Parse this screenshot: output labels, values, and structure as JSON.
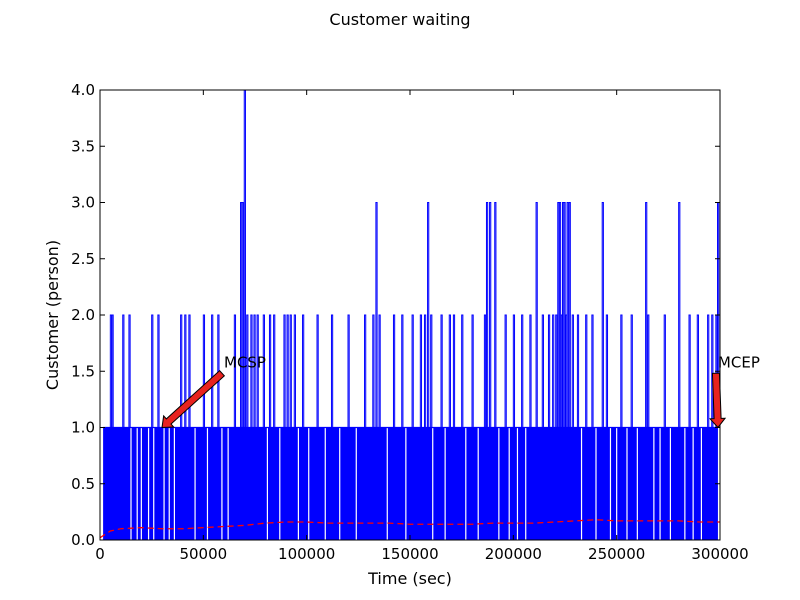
{
  "chart_data": {
    "type": "line",
    "title": "Customer waiting",
    "xlabel": "Time (sec)",
    "ylabel": "Customer (person)",
    "xlim": [
      0,
      300000
    ],
    "ylim": [
      0.0,
      4.0
    ],
    "grid": false,
    "x_ticks": [
      0,
      50000,
      100000,
      150000,
      200000,
      250000,
      300000
    ],
    "x_tick_labels": [
      "0",
      "50000",
      "100000",
      "150000",
      "200000",
      "250000",
      "300000"
    ],
    "y_ticks": [
      0.0,
      0.5,
      1.0,
      1.5,
      2.0,
      2.5,
      3.0,
      3.5,
      4.0
    ],
    "y_tick_labels": [
      "0.0",
      "0.5",
      "1.0",
      "1.5",
      "2.0",
      "2.5",
      "3.0",
      "3.5",
      "4.0"
    ],
    "colors": {
      "queue": "#0000ff",
      "mean": "#ff0000",
      "arrow_fill": "#e8231f",
      "arrow_edge": "#000000"
    },
    "series": [
      {
        "style": "step-solid",
        "base_level": 1,
        "dense_start": 1500,
        "dense_end": 299000,
        "spikes": [
          {
            "x": 5000,
            "y": 2
          },
          {
            "x": 5800,
            "y": 2
          },
          {
            "x": 11000,
            "y": 2
          },
          {
            "x": 14000,
            "y": 2
          },
          {
            "x": 25000,
            "y": 2
          },
          {
            "x": 28000,
            "y": 2
          },
          {
            "x": 39000,
            "y": 2
          },
          {
            "x": 41000,
            "y": 2
          },
          {
            "x": 43000,
            "y": 2
          },
          {
            "x": 50000,
            "y": 2
          },
          {
            "x": 54000,
            "y": 2
          },
          {
            "x": 57000,
            "y": 2
          },
          {
            "x": 65000,
            "y": 2
          },
          {
            "x": 68000,
            "y": 3
          },
          {
            "x": 68800,
            "y": 3
          },
          {
            "x": 69800,
            "y": 4
          },
          {
            "x": 71000,
            "y": 2
          },
          {
            "x": 73000,
            "y": 2
          },
          {
            "x": 74500,
            "y": 2
          },
          {
            "x": 76000,
            "y": 2
          },
          {
            "x": 79000,
            "y": 2
          },
          {
            "x": 82000,
            "y": 2
          },
          {
            "x": 84000,
            "y": 2
          },
          {
            "x": 89000,
            "y": 2
          },
          {
            "x": 90500,
            "y": 2
          },
          {
            "x": 92000,
            "y": 2
          },
          {
            "x": 94000,
            "y": 2
          },
          {
            "x": 98000,
            "y": 2
          },
          {
            "x": 105000,
            "y": 2
          },
          {
            "x": 112000,
            "y": 2
          },
          {
            "x": 120000,
            "y": 2
          },
          {
            "x": 128000,
            "y": 2
          },
          {
            "x": 132000,
            "y": 2
          },
          {
            "x": 133500,
            "y": 3
          },
          {
            "x": 135000,
            "y": 2
          },
          {
            "x": 142000,
            "y": 2
          },
          {
            "x": 146000,
            "y": 2
          },
          {
            "x": 151000,
            "y": 2
          },
          {
            "x": 155000,
            "y": 2
          },
          {
            "x": 157000,
            "y": 2
          },
          {
            "x": 158500,
            "y": 3
          },
          {
            "x": 160000,
            "y": 2
          },
          {
            "x": 165000,
            "y": 2
          },
          {
            "x": 169000,
            "y": 2
          },
          {
            "x": 171000,
            "y": 2
          },
          {
            "x": 175000,
            "y": 2
          },
          {
            "x": 180000,
            "y": 2
          },
          {
            "x": 186000,
            "y": 2
          },
          {
            "x": 187000,
            "y": 3
          },
          {
            "x": 188500,
            "y": 3
          },
          {
            "x": 191000,
            "y": 3
          },
          {
            "x": 196000,
            "y": 2
          },
          {
            "x": 200000,
            "y": 2
          },
          {
            "x": 204000,
            "y": 2
          },
          {
            "x": 208000,
            "y": 2
          },
          {
            "x": 211000,
            "y": 3
          },
          {
            "x": 214000,
            "y": 2
          },
          {
            "x": 217000,
            "y": 2
          },
          {
            "x": 219000,
            "y": 2
          },
          {
            "x": 220500,
            "y": 2
          },
          {
            "x": 221500,
            "y": 3
          },
          {
            "x": 222300,
            "y": 3
          },
          {
            "x": 223000,
            "y": 2
          },
          {
            "x": 223800,
            "y": 3
          },
          {
            "x": 224500,
            "y": 3
          },
          {
            "x": 225300,
            "y": 2
          },
          {
            "x": 226000,
            "y": 3
          },
          {
            "x": 227000,
            "y": 3
          },
          {
            "x": 228500,
            "y": 2
          },
          {
            "x": 231000,
            "y": 2
          },
          {
            "x": 235000,
            "y": 2
          },
          {
            "x": 238000,
            "y": 2
          },
          {
            "x": 243000,
            "y": 3
          },
          {
            "x": 245000,
            "y": 2
          },
          {
            "x": 252000,
            "y": 2
          },
          {
            "x": 257000,
            "y": 2
          },
          {
            "x": 264000,
            "y": 3
          },
          {
            "x": 265000,
            "y": 2
          },
          {
            "x": 273000,
            "y": 2
          },
          {
            "x": 280000,
            "y": 3
          },
          {
            "x": 285000,
            "y": 2
          },
          {
            "x": 289000,
            "y": 2
          },
          {
            "x": 294000,
            "y": 2
          },
          {
            "x": 296000,
            "y": 2
          },
          {
            "x": 298000,
            "y": 2
          },
          {
            "x": 298800,
            "y": 3
          }
        ],
        "gaps": [
          {
            "x": 1000,
            "y": 0
          },
          {
            "x": 15000,
            "y": 0
          },
          {
            "x": 18000,
            "y": 0
          },
          {
            "x": 20000,
            "y": 0
          },
          {
            "x": 23500,
            "y": 0
          },
          {
            "x": 26000,
            "y": 0
          },
          {
            "x": 31000,
            "y": 0
          },
          {
            "x": 33500,
            "y": 0
          },
          {
            "x": 36000,
            "y": 0
          },
          {
            "x": 46000,
            "y": 0
          },
          {
            "x": 52000,
            "y": 0
          },
          {
            "x": 59000,
            "y": 0
          },
          {
            "x": 62000,
            "y": 0
          },
          {
            "x": 81000,
            "y": 0
          },
          {
            "x": 87000,
            "y": 0
          },
          {
            "x": 96000,
            "y": 0
          },
          {
            "x": 101000,
            "y": 0
          },
          {
            "x": 109000,
            "y": 0
          },
          {
            "x": 116000,
            "y": 0
          },
          {
            "x": 124000,
            "y": 0
          },
          {
            "x": 139000,
            "y": 0
          },
          {
            "x": 148000,
            "y": 0
          },
          {
            "x": 161000,
            "y": 0
          },
          {
            "x": 167000,
            "y": 0
          },
          {
            "x": 177000,
            "y": 0
          },
          {
            "x": 183000,
            "y": 0
          },
          {
            "x": 193000,
            "y": 0
          },
          {
            "x": 198000,
            "y": 0
          },
          {
            "x": 202000,
            "y": 0
          },
          {
            "x": 206000,
            "y": 0
          },
          {
            "x": 233000,
            "y": 0
          },
          {
            "x": 240000,
            "y": 0
          },
          {
            "x": 247000,
            "y": 0
          },
          {
            "x": 250000,
            "y": 0
          },
          {
            "x": 255000,
            "y": 0
          },
          {
            "x": 260000,
            "y": 0
          },
          {
            "x": 268000,
            "y": 0
          },
          {
            "x": 271000,
            "y": 0
          },
          {
            "x": 276000,
            "y": 0
          },
          {
            "x": 283000,
            "y": 0
          },
          {
            "x": 287000,
            "y": 0
          },
          {
            "x": 291000,
            "y": 0
          }
        ]
      },
      {
        "style": "dashed",
        "x": [
          0,
          5000,
          10000,
          20000,
          30000,
          40000,
          50000,
          60000,
          70000,
          80000,
          90000,
          100000,
          110000,
          120000,
          130000,
          140000,
          150000,
          160000,
          170000,
          180000,
          190000,
          200000,
          210000,
          220000,
          230000,
          240000,
          250000,
          260000,
          270000,
          280000,
          290000,
          300000
        ],
        "y": [
          0.02,
          0.08,
          0.1,
          0.11,
          0.1,
          0.1,
          0.11,
          0.12,
          0.13,
          0.15,
          0.16,
          0.16,
          0.15,
          0.15,
          0.15,
          0.15,
          0.14,
          0.14,
          0.14,
          0.14,
          0.15,
          0.15,
          0.15,
          0.16,
          0.17,
          0.18,
          0.17,
          0.17,
          0.17,
          0.17,
          0.16,
          0.16
        ]
      }
    ],
    "annotations": [
      {
        "text": "MCSP",
        "target_x": 30000,
        "target_y": 1.0,
        "text_x": 60000,
        "text_y": 1.5
      },
      {
        "text": "MCEP",
        "target_x": 299000,
        "target_y": 1.0,
        "text_x": 299000,
        "text_y": 1.5
      }
    ]
  }
}
